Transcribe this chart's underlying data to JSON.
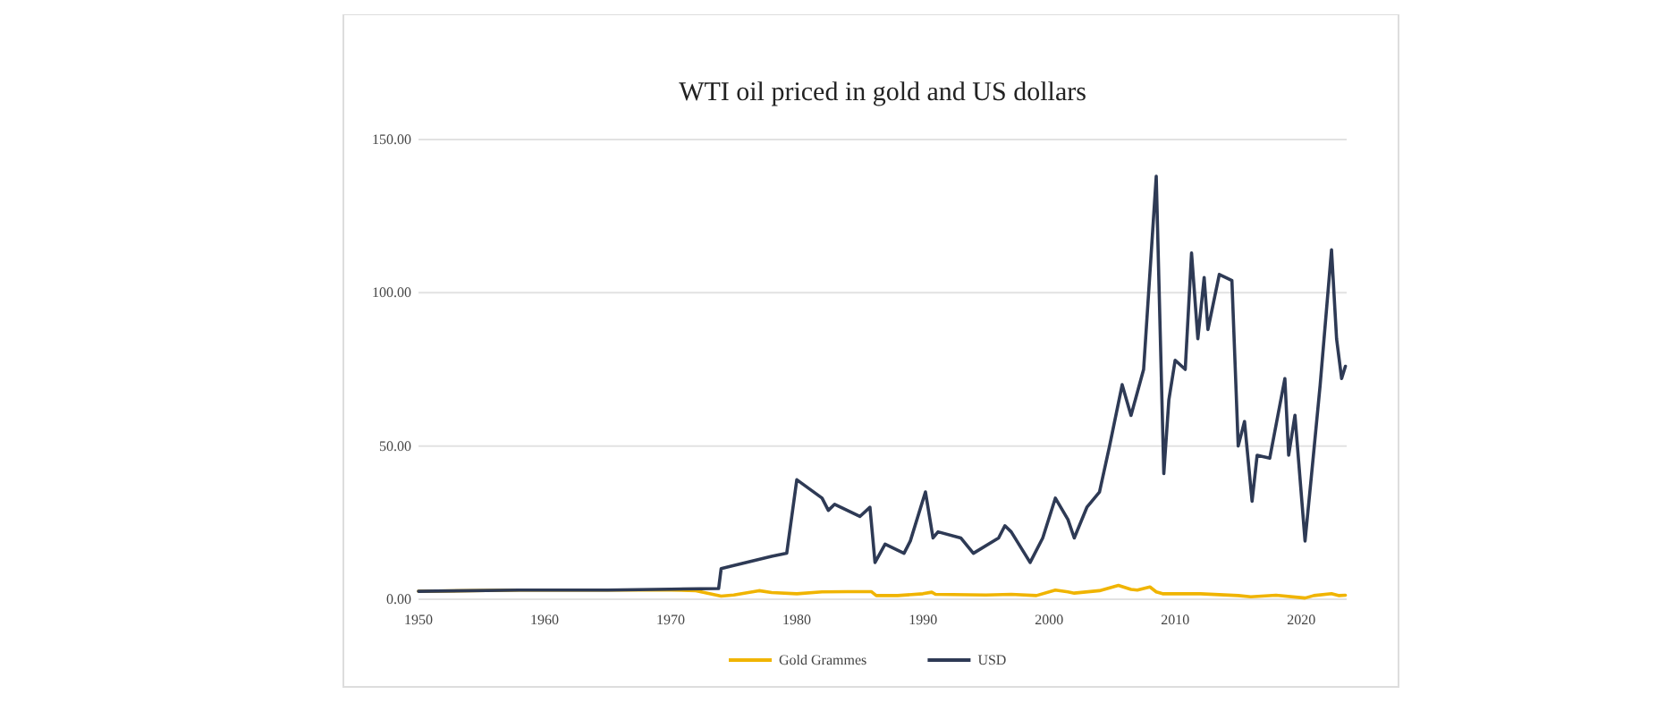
{
  "chart_data": {
    "type": "line",
    "title": "WTI oil priced in gold and US dollars",
    "xlim": [
      1950,
      2023.6
    ],
    "xticks": [
      1950,
      1960,
      1970,
      1980,
      1990,
      2000,
      2010,
      2020
    ],
    "ylim": [
      0,
      150
    ],
    "yticks": [
      {
        "value": 0,
        "label": "0.00"
      },
      {
        "value": 50,
        "label": "50.00"
      },
      {
        "value": 100,
        "label": "100.00"
      },
      {
        "value": 150,
        "label": "150.00"
      }
    ],
    "grid": "y",
    "legend": "bottom",
    "marker": "none",
    "line_style": "solid",
    "series": [
      {
        "name": "Gold Grammes",
        "color": "#f0b400",
        "x": [
          1950,
          1958,
          1965,
          1970,
          1972,
          1974,
          1975,
          1977,
          1978,
          1980,
          1982,
          1984,
          1985.9,
          1986.3,
          1988,
          1990,
          1990.7,
          1991,
          1995,
          1997,
          1999,
          2000.5,
          2001.5,
          2002,
          2004,
          2005.5,
          2006.5,
          2007,
          2008,
          2008.5,
          2009,
          2012,
          2015,
          2016,
          2018,
          2020.3,
          2021,
          2022.4,
          2023,
          2023.5
        ],
        "values": [
          2.6,
          3,
          3,
          3,
          2.8,
          1,
          1.4,
          2.8,
          2.2,
          1.8,
          2.4,
          2.5,
          2.5,
          1.2,
          1.2,
          1.8,
          2.3,
          1.6,
          1.4,
          1.6,
          1.2,
          3,
          2.4,
          2,
          2.8,
          4.5,
          3.2,
          3,
          4,
          2.4,
          1.8,
          1.8,
          1.2,
          0.8,
          1.3,
          0.4,
          1.2,
          1.8,
          1.2,
          1.3
        ]
      },
      {
        "name": "USD",
        "color": "#2e3a55",
        "x": [
          1950,
          1958,
          1965,
          1970,
          1973.8,
          1974,
          1975,
          1978,
          1979.2,
          1980,
          1981,
          1982,
          1982.5,
          1983,
          1984,
          1985,
          1985.8,
          1986.2,
          1987,
          1988.5,
          1989,
          1990.2,
          1990.8,
          1991.2,
          1993,
          1994,
          1996,
          1996.5,
          1997,
          1998.5,
          1999.5,
          2000.5,
          2001.5,
          2002,
          2003,
          2004,
          2004.8,
          2005.8,
          2006.5,
          2007.5,
          2008.5,
          2009.1,
          2009.5,
          2010,
          2010.8,
          2011.3,
          2011.8,
          2012.3,
          2012.6,
          2013.5,
          2014.5,
          2015.0,
          2015.5,
          2016.1,
          2016.5,
          2017.5,
          2018.7,
          2019.0,
          2019.5,
          2020.3,
          2020.8,
          2021.5,
          2022.4,
          2022.8,
          2023.2,
          2023.5
        ],
        "values": [
          2.6,
          3,
          3,
          3.3,
          3.5,
          10,
          11,
          14,
          15,
          39,
          36,
          33,
          29,
          31,
          29,
          27,
          30,
          12,
          18,
          15,
          19,
          35,
          20,
          22,
          20,
          15,
          20,
          24,
          22,
          12,
          20,
          33,
          26,
          20,
          30,
          35,
          50,
          70,
          60,
          75,
          138,
          41,
          65,
          78,
          75,
          113,
          85,
          105,
          88,
          106,
          104,
          50,
          58,
          32,
          47,
          46,
          72,
          47,
          60,
          19,
          40,
          70,
          114,
          85,
          72,
          76
        ]
      }
    ]
  }
}
